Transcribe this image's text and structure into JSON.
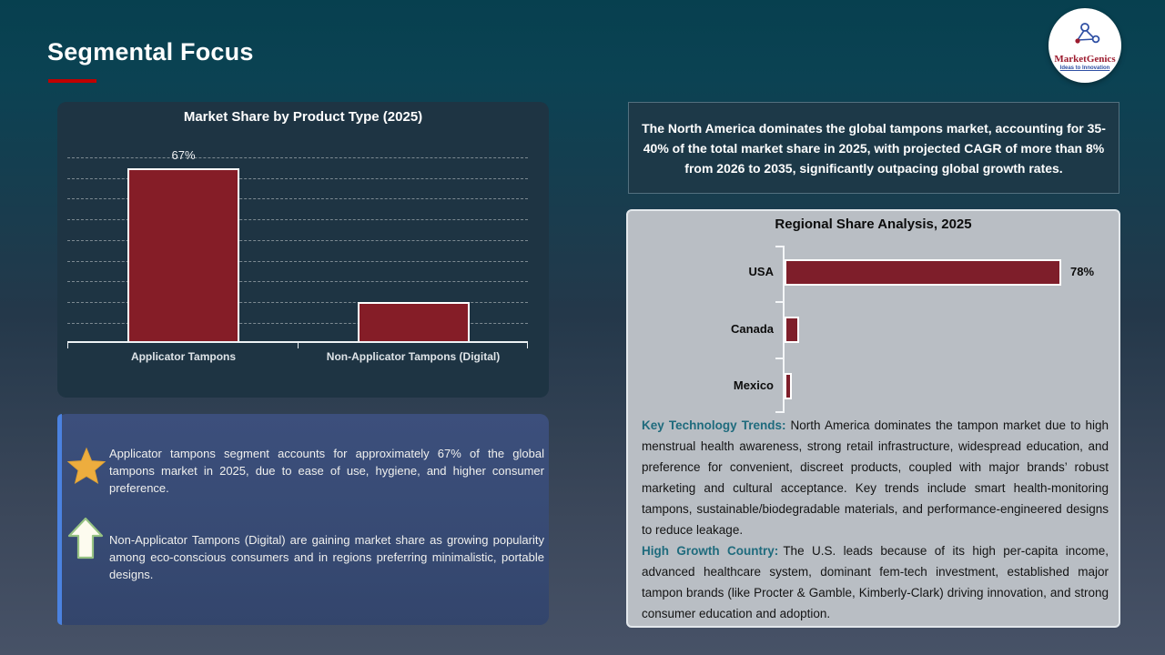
{
  "page": {
    "title": "Segmental Focus"
  },
  "logo": {
    "name": "MarketGenics",
    "tagline": "Ideas to Innovation"
  },
  "na_header": {
    "text": "The North America dominates the global tampons market, accounting for 35-40% of the total market share in 2025, with projected CAGR of more than 8% from 2026 to 2035, significantly outpacing global growth rates."
  },
  "insights": {
    "items": [
      {
        "icon": "star-icon",
        "text": "Applicator tampons segment accounts for approximately 67% of the global tampons market in 2025, due to ease of use, hygiene, and higher consumer preference."
      },
      {
        "icon": "up-arrow-icon",
        "text": "Non-Applicator Tampons (Digital) are gaining market share as growing popularity among eco-conscious consumers and in regions preferring minimalistic, portable designs."
      }
    ]
  },
  "regional_text": {
    "paragraphs": [
      {
        "lead": "Key Technology Trends:",
        "body": "North America dominates the tampon market due to high menstrual health awareness, strong retail infrastructure, widespread education, and preference for convenient, discreet products, coupled with major brands’ robust marketing and cultural acceptance. Key trends include smart health-monitoring tampons, sustainable/biodegradable materials, and performance-engineered designs to reduce leakage."
      },
      {
        "lead": "High Growth Country:",
        "body": "The U.S. leads because of its high per-capita income, advanced healthcare system, dominant fem-tech investment, established major tampon brands (like Procter & Gamble, Kimberly-Clark) driving innovation, and strong consumer education and adoption."
      }
    ]
  },
  "chart_data": [
    {
      "type": "bar",
      "orientation": "vertical",
      "title": "Market Share by Product Type (2025)",
      "categories": [
        "Applicator Tampons",
        "Non-Applicator Tampons (Digital)"
      ],
      "values": [
        67,
        15
      ],
      "data_labels": [
        "67%",
        ""
      ],
      "ylabel": "",
      "xlabel": "",
      "ylim": [
        0,
        76
      ],
      "grid": "dashed-horizontal",
      "legend": "none",
      "bar_color": "#851d27",
      "bar_border_color": "#ffffff"
    },
    {
      "type": "bar",
      "orientation": "horizontal",
      "title": "Regional Share Analysis, 2025",
      "categories": [
        "USA",
        "Canada",
        "Mexico"
      ],
      "values": [
        78,
        4,
        2
      ],
      "data_labels": [
        "78%",
        "",
        ""
      ],
      "xlim": [
        0,
        95
      ],
      "grid": "off",
      "legend": "none",
      "bar_color": "#7e1e2a",
      "bar_border_color": "#ffffff"
    }
  ],
  "colors": {
    "background_top": "#07404f",
    "background_bottom": "#475267",
    "title_underline": "#c00000",
    "left_panel_bg": "#1e3443",
    "insight_panel_bg": "#3a4c77",
    "insight_accent": "#4b82e0",
    "star": "#edad3e",
    "arrow_fill": "#fdfbef",
    "arrow_stroke": "#96c283",
    "na_header_bg": "#1d3948",
    "regional_panel_bg": "#b9bec4",
    "vertical_bar": "#851d27",
    "horizontal_bar": "#7e1e2a",
    "lead_text": "#1f6b7d"
  }
}
